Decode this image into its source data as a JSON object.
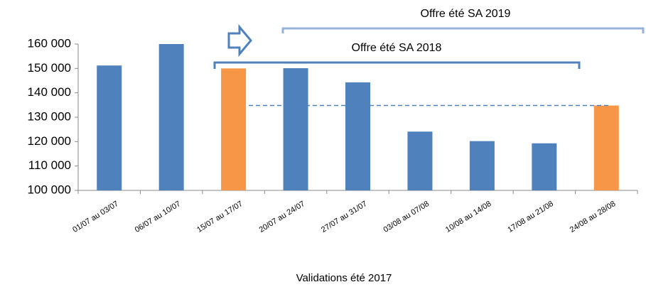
{
  "chart_data": {
    "type": "bar",
    "x_label": "Validations été 2017",
    "categories": [
      "01/07 au 03/07",
      "06/07 au 10/07",
      "15/07 au 17/07",
      "20/07 au 24/07",
      "27/07 au 31/07",
      "03/08 au 07/08",
      "10/08 au 14/08",
      "17/08 au 21/08",
      "24/08 au 28/08"
    ],
    "values": [
      151200,
      160000,
      150000,
      150100,
      144300,
      124100,
      120200,
      119300,
      134800
    ],
    "colors": [
      "#4f81bd",
      "#4f81bd",
      "#f79646",
      "#4f81bd",
      "#4f81bd",
      "#4f81bd",
      "#4f81bd",
      "#4f81bd",
      "#f79646"
    ],
    "ylim": [
      100000,
      160000
    ],
    "yticks": [
      {
        "value": 100000,
        "label": "100 000"
      },
      {
        "value": 110000,
        "label": "110 000"
      },
      {
        "value": 120000,
        "label": "120 000"
      },
      {
        "value": 130000,
        "label": "130 000"
      },
      {
        "value": 140000,
        "label": "140 000"
      },
      {
        "value": 150000,
        "label": "150 000"
      },
      {
        "value": 160000,
        "label": "160 000"
      }
    ],
    "reference_line": 134800,
    "annotations": [
      "Offre été SA 2019",
      "Offre été SA 2018"
    ]
  }
}
